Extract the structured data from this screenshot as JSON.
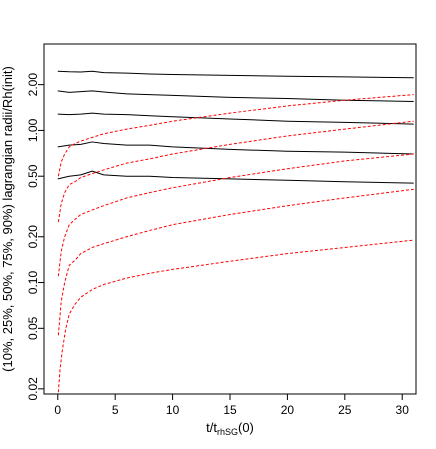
{
  "chart_data": {
    "type": "line",
    "xlabel": "t/t",
    "xlabel_sub": "rhSG",
    "xlabel_tail": "(0)",
    "ylabel": "(10%, 25%, 50%, 75%, 90%) lagrangian radii/Rh(init)",
    "y_scale": "log",
    "xlim": [
      -1.2,
      31.2
    ],
    "ylim": [
      0.0185,
      3.7
    ],
    "x_ticks": [
      0,
      5,
      10,
      15,
      20,
      25,
      30
    ],
    "y_ticks": [
      0.02,
      0.05,
      0.1,
      0.2,
      0.5,
      1.0,
      2.0
    ],
    "y_tick_labels": [
      "0.02",
      "0.05",
      "0.10",
      "0.20",
      "0.50",
      "1.00",
      "2.00"
    ],
    "grid": false,
    "series": [
      {
        "color": "#000000",
        "style": "solid",
        "x": [
          0,
          1,
          2,
          3,
          4,
          6,
          8,
          10,
          15,
          20,
          25,
          31
        ],
        "values": [
          2.45,
          2.43,
          2.42,
          2.45,
          2.4,
          2.38,
          2.35,
          2.33,
          2.3,
          2.27,
          2.25,
          2.22
        ]
      },
      {
        "color": "#000000",
        "style": "solid",
        "x": [
          0,
          1,
          2,
          3,
          4,
          6,
          8,
          10,
          15,
          20,
          25,
          31
        ],
        "values": [
          1.82,
          1.78,
          1.8,
          1.82,
          1.79,
          1.74,
          1.72,
          1.7,
          1.65,
          1.62,
          1.58,
          1.55
        ]
      },
      {
        "color": "#000000",
        "style": "solid",
        "x": [
          0,
          1,
          2,
          3,
          4,
          6,
          8,
          10,
          15,
          20,
          25,
          31
        ],
        "values": [
          1.28,
          1.27,
          1.28,
          1.3,
          1.28,
          1.27,
          1.25,
          1.23,
          1.19,
          1.15,
          1.13,
          1.1
        ]
      },
      {
        "color": "#000000",
        "style": "solid",
        "x": [
          0,
          1,
          2,
          3,
          4,
          6,
          8,
          10,
          15,
          20,
          25,
          31
        ],
        "values": [
          0.78,
          0.8,
          0.81,
          0.84,
          0.82,
          0.8,
          0.8,
          0.78,
          0.75,
          0.73,
          0.72,
          0.7
        ]
      },
      {
        "color": "#000000",
        "style": "solid",
        "x": [
          0,
          1,
          2,
          3,
          4,
          6,
          8,
          10,
          15,
          20,
          25,
          31
        ],
        "values": [
          0.48,
          0.5,
          0.51,
          0.54,
          0.51,
          0.5,
          0.5,
          0.49,
          0.48,
          0.47,
          0.46,
          0.45
        ]
      },
      {
        "color": "#ff0000",
        "style": "dashed",
        "x": [
          0.05,
          0.3,
          0.6,
          1,
          1.5,
          2,
          3,
          4,
          6,
          8,
          10,
          15,
          20,
          25,
          31
        ],
        "values": [
          0.5,
          0.62,
          0.7,
          0.78,
          0.82,
          0.85,
          0.9,
          0.95,
          1.02,
          1.08,
          1.15,
          1.3,
          1.45,
          1.58,
          1.72
        ]
      },
      {
        "color": "#ff0000",
        "style": "dashed",
        "x": [
          0.05,
          0.3,
          0.6,
          1,
          1.5,
          2,
          3,
          4,
          6,
          8,
          10,
          15,
          20,
          25,
          31
        ],
        "values": [
          0.25,
          0.33,
          0.39,
          0.44,
          0.46,
          0.49,
          0.52,
          0.55,
          0.61,
          0.65,
          0.7,
          0.81,
          0.92,
          1.02,
          1.15
        ]
      },
      {
        "color": "#ff0000",
        "style": "dashed",
        "x": [
          0.05,
          0.3,
          0.6,
          1,
          1.5,
          2,
          3,
          4,
          6,
          8,
          10,
          15,
          20,
          25,
          31
        ],
        "values": [
          0.11,
          0.16,
          0.2,
          0.24,
          0.26,
          0.28,
          0.3,
          0.32,
          0.36,
          0.39,
          0.42,
          0.49,
          0.56,
          0.63,
          0.7
        ]
      },
      {
        "color": "#ff0000",
        "style": "dashed",
        "x": [
          0.05,
          0.3,
          0.6,
          1,
          1.5,
          2,
          3,
          4,
          6,
          8,
          10,
          15,
          20,
          25,
          31
        ],
        "values": [
          0.045,
          0.075,
          0.1,
          0.13,
          0.14,
          0.155,
          0.17,
          0.18,
          0.2,
          0.22,
          0.24,
          0.28,
          0.32,
          0.36,
          0.41
        ]
      },
      {
        "color": "#ff0000",
        "style": "dashed",
        "x": [
          0.05,
          0.2,
          0.4,
          0.7,
          1,
          1.5,
          2,
          3,
          4,
          6,
          8,
          10,
          15,
          20,
          25,
          31
        ],
        "values": [
          0.019,
          0.027,
          0.036,
          0.05,
          0.062,
          0.072,
          0.08,
          0.09,
          0.097,
          0.107,
          0.115,
          0.122,
          0.138,
          0.155,
          0.17,
          0.19
        ]
      }
    ]
  }
}
